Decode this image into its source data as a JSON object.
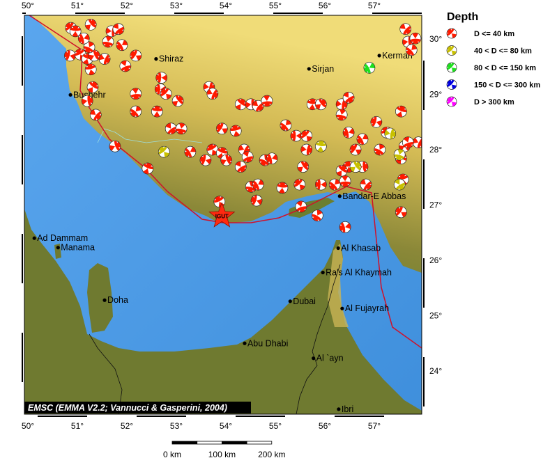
{
  "map": {
    "extent": {
      "lon": [
        49.93,
        57.96
      ],
      "lat": [
        23.2,
        30.43
      ]
    },
    "colors": {
      "water": "#4f9be6",
      "land_low": "#5f7a2e",
      "land_high": "#e9d26a",
      "arabia": "#6f7a30",
      "plate_boundary": "#d0102a"
    },
    "lon_ticks": [
      "50°",
      "51°",
      "52°",
      "53°",
      "54°",
      "55°",
      "56°",
      "57°"
    ],
    "lat_ticks": [
      "30°",
      "29°",
      "28°",
      "27°",
      "26°",
      "25°",
      "24°"
    ],
    "credit": "EMSC (EMMA V2.2; Vannucci & Gasperini, 2004)",
    "station": {
      "label": "IGUT",
      "lon": 53.92,
      "lat": 26.8,
      "icon": "star-icon"
    },
    "cities": [
      {
        "name": "Kerman",
        "lon": 57.1,
        "lat": 29.7
      },
      {
        "name": "Shiraz",
        "lon": 52.59,
        "lat": 29.64
      },
      {
        "name": "Sirjan",
        "lon": 55.68,
        "lat": 29.46
      },
      {
        "name": "Bushehr",
        "lon": 50.86,
        "lat": 28.99
      },
      {
        "name": "Bandar-E Abbas",
        "lon": 56.3,
        "lat": 27.16
      },
      {
        "name": "Ad Dammam",
        "lon": 50.13,
        "lat": 26.4
      },
      {
        "name": "Manama",
        "lon": 50.61,
        "lat": 26.23
      },
      {
        "name": "Al Khasab",
        "lon": 56.27,
        "lat": 26.22
      },
      {
        "name": "Ra's Al Khaymah",
        "lon": 55.96,
        "lat": 25.78
      },
      {
        "name": "Doha",
        "lon": 51.55,
        "lat": 25.28
      },
      {
        "name": "Dubai",
        "lon": 55.3,
        "lat": 25.26
      },
      {
        "name": "Al Fujayrah",
        "lon": 56.35,
        "lat": 25.13
      },
      {
        "name": "Abu Dhabi",
        "lon": 54.38,
        "lat": 24.5
      },
      {
        "name": "Al `ayn",
        "lon": 55.77,
        "lat": 24.23
      },
      {
        "name": "Ibri",
        "lon": 56.28,
        "lat": 23.31
      }
    ],
    "events": [
      [
        50.87,
        30.2,
        1
      ],
      [
        50.96,
        30.14,
        1
      ],
      [
        51.27,
        30.26,
        1
      ],
      [
        51.69,
        30.14,
        1
      ],
      [
        51.83,
        30.18,
        1
      ],
      [
        51.62,
        29.95,
        1
      ],
      [
        51.9,
        29.89,
        1
      ],
      [
        50.85,
        29.7,
        1
      ],
      [
        51.06,
        29.72,
        1
      ],
      [
        51.2,
        29.64,
        1
      ],
      [
        51.34,
        29.7,
        1
      ],
      [
        51.55,
        29.64,
        1
      ],
      [
        51.97,
        29.51,
        1
      ],
      [
        51.24,
        29.85,
        1
      ],
      [
        51.13,
        30.01,
        1
      ],
      [
        52.18,
        29.7,
        1
      ],
      [
        51.27,
        29.45,
        1
      ],
      [
        51.31,
        29.13,
        1
      ],
      [
        51.2,
        28.88,
        1
      ],
      [
        51.37,
        28.63,
        1
      ],
      [
        52.18,
        29.01,
        1
      ],
      [
        52.18,
        28.69,
        1
      ],
      [
        52.68,
        29.09,
        1
      ],
      [
        52.79,
        29.01,
        1
      ],
      [
        52.61,
        28.69,
        1
      ],
      [
        53.03,
        28.88,
        1
      ],
      [
        53.66,
        29.13,
        1
      ],
      [
        52.89,
        28.38,
        1
      ],
      [
        53.1,
        28.38,
        1
      ],
      [
        53.28,
        27.96,
        1
      ],
      [
        53.59,
        27.81,
        1
      ],
      [
        53.73,
        28.0,
        1
      ],
      [
        53.92,
        27.94,
        1
      ],
      [
        54.01,
        27.81,
        1
      ],
      [
        54.37,
        28.0,
        1
      ],
      [
        54.44,
        27.87,
        1
      ],
      [
        54.79,
        27.81,
        1
      ],
      [
        54.93,
        27.84,
        1
      ],
      [
        53.92,
        28.38,
        1
      ],
      [
        54.2,
        28.34,
        1
      ],
      [
        54.3,
        28.82,
        1
      ],
      [
        54.51,
        28.82,
        1
      ],
      [
        54.65,
        28.79,
        1
      ],
      [
        54.83,
        28.88,
        1
      ],
      [
        55.21,
        28.44,
        1
      ],
      [
        55.42,
        28.25,
        1
      ],
      [
        55.63,
        28.25,
        1
      ],
      [
        55.75,
        28.82,
        1
      ],
      [
        55.92,
        28.82,
        1
      ],
      [
        56.34,
        28.82,
        1
      ],
      [
        56.48,
        28.94,
        1
      ],
      [
        56.34,
        28.63,
        1
      ],
      [
        56.76,
        28.19,
        1
      ],
      [
        57.04,
        28.5,
        1
      ],
      [
        57.25,
        28.31,
        1
      ],
      [
        57.54,
        28.69,
        1
      ],
      [
        57.61,
        28.06,
        1
      ],
      [
        57.89,
        28.13,
        1
      ],
      [
        57.68,
        28.13,
        1
      ],
      [
        57.11,
        28.0,
        1
      ],
      [
        56.48,
        28.31,
        1
      ],
      [
        56.62,
        28.0,
        1
      ],
      [
        56.48,
        27.69,
        1
      ],
      [
        56.34,
        27.62,
        1
      ],
      [
        56.76,
        27.69,
        1
      ],
      [
        56.83,
        27.37,
        1
      ],
      [
        56.41,
        27.43,
        1
      ],
      [
        56.2,
        27.37,
        1
      ],
      [
        55.92,
        27.37,
        1
      ],
      [
        55.49,
        27.37,
        1
      ],
      [
        55.14,
        27.31,
        1
      ],
      [
        55.56,
        27.69,
        1
      ],
      [
        55.63,
        28.0,
        1
      ],
      [
        54.3,
        27.69,
        1
      ],
      [
        54.51,
        27.33,
        1
      ],
      [
        54.65,
        27.37,
        1
      ],
      [
        54.62,
        27.08,
        1
      ],
      [
        53.87,
        27.06,
        1
      ],
      [
        52.42,
        27.66,
        1
      ],
      [
        51.76,
        28.06,
        1
      ],
      [
        53.73,
        29.01,
        1
      ],
      [
        55.52,
        26.97,
        1
      ],
      [
        55.85,
        26.81,
        1
      ],
      [
        56.41,
        26.6,
        1
      ],
      [
        57.54,
        26.87,
        1
      ],
      [
        57.58,
        27.46,
        1
      ],
      [
        57.54,
        27.84,
        1
      ],
      [
        57.68,
        29.95,
        1
      ],
      [
        57.63,
        30.18,
        1
      ],
      [
        57.83,
        30.01,
        1
      ],
      [
        57.75,
        29.8,
        1
      ],
      [
        52.7,
        29.3,
        1
      ],
      [
        52.75,
        27.96,
        2
      ],
      [
        55.92,
        28.06,
        2
      ],
      [
        56.62,
        27.69,
        2
      ],
      [
        57.32,
        28.29,
        2
      ],
      [
        57.51,
        27.37,
        2
      ],
      [
        57.51,
        27.91,
        2
      ],
      [
        56.9,
        29.48,
        3
      ]
    ]
  },
  "legend": {
    "title": "Depth",
    "items": [
      {
        "label": "D <= 40 km",
        "color": "#ff1a00"
      },
      {
        "label": "40 < D <= 80 km",
        "color": "#c8c000"
      },
      {
        "label": "80 < D <= 150 km",
        "color": "#1ee01e"
      },
      {
        "label": "150 < D <= 300 km",
        "color": "#0000e0"
      },
      {
        "label": "D > 300 km",
        "color": "#ff00ff"
      }
    ]
  },
  "scale_bar": {
    "labels": [
      "0 km",
      "100 km",
      "200 km"
    ]
  }
}
